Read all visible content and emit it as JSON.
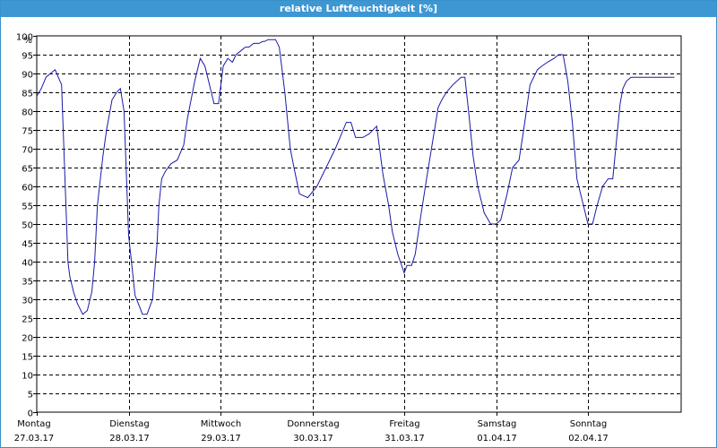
{
  "window": {
    "title": "relative Luftfeuchtigkeit [%]"
  },
  "chart_data": {
    "type": "line",
    "title": "relative Luftfeuchtigkeit [%]",
    "ylabel": "%",
    "xlabel": "",
    "ylim": [
      0,
      100
    ],
    "ytick_step": 5,
    "grid": true,
    "xlim_days": [
      0,
      7
    ],
    "day_labels": [
      {
        "day": "Montag",
        "date": "27.03.17"
      },
      {
        "day": "Dienstag",
        "date": "28.03.17"
      },
      {
        "day": "Mittwoch",
        "date": "29.03.17"
      },
      {
        "day": "Donnerstag",
        "date": "30.03.17"
      },
      {
        "day": "Freitag",
        "date": "31.03.17"
      },
      {
        "day": "Samstag",
        "date": "01.04.17"
      },
      {
        "day": "Sonntag",
        "date": "02.04.17"
      }
    ],
    "line_color": "#1a1aa8",
    "series": [
      {
        "x_days": [
          0,
          0.05,
          0.1,
          0.15,
          0.2,
          0.27,
          0.31,
          0.34,
          0.36,
          0.38,
          0.4,
          0.44,
          0.5,
          0.55,
          0.6,
          0.63,
          0.66,
          0.72,
          0.76,
          0.82,
          0.87,
          0.91,
          0.95,
          1.0,
          1.07,
          1.12,
          1.15,
          1.2,
          1.26,
          1.31,
          1.33,
          1.36,
          1.4,
          1.46,
          1.53,
          1.6,
          1.64,
          1.72,
          1.78,
          1.83,
          1.87,
          1.93,
          1.98,
          2.03,
          2.08,
          2.13,
          2.17,
          2.22,
          2.27,
          2.31,
          2.36,
          2.42,
          2.46,
          2.48,
          2.52,
          2.55,
          2.6,
          2.64,
          2.66,
          2.7,
          2.76,
          2.8,
          2.86,
          2.95,
          3.05,
          3.15,
          3.25,
          3.37,
          3.42,
          3.47,
          3.5,
          3.55,
          3.62,
          3.7,
          3.77,
          3.83,
          3.87,
          3.93,
          4.0,
          4.03,
          4.08,
          4.12,
          4.18,
          4.25,
          4.33,
          4.37,
          4.41,
          4.46,
          4.53,
          4.62,
          4.66,
          4.7,
          4.75,
          4.8,
          4.87,
          4.94,
          5.0,
          5.05,
          5.12,
          5.18,
          5.25,
          5.3,
          5.37,
          5.45,
          5.5,
          5.56,
          5.63,
          5.68,
          5.73,
          5.78,
          5.83,
          5.88,
          5.95,
          6.0,
          6.05,
          6.1,
          6.16,
          6.22,
          6.27,
          6.31,
          6.35,
          6.38,
          6.42,
          6.47,
          6.52,
          6.56,
          6.62,
          6.67,
          6.72,
          6.77,
          6.82,
          6.88,
          6.94
        ],
        "values": [
          84,
          86,
          89,
          90,
          91,
          87,
          60,
          40,
          36,
          34,
          32,
          29,
          26,
          27,
          32,
          40,
          55,
          68,
          75,
          83,
          85,
          86,
          80,
          47,
          31,
          28,
          26,
          26,
          30,
          45,
          55,
          62,
          64,
          66,
          67,
          71,
          78,
          88,
          94,
          92,
          88,
          82,
          82,
          92,
          94,
          93,
          95,
          96,
          97,
          97,
          98,
          98,
          98.5,
          98.5,
          99,
          99,
          99,
          97,
          93,
          85,
          70,
          65,
          58,
          57,
          60,
          65,
          70,
          77,
          77,
          73,
          73,
          73,
          74,
          76,
          63,
          55,
          48,
          42,
          37,
          39,
          39,
          42,
          52,
          63,
          75,
          81,
          83,
          85,
          87,
          89,
          89,
          80,
          68,
          60,
          53,
          50,
          50,
          51,
          58,
          65,
          67,
          75,
          87,
          91,
          92,
          93,
          94,
          95,
          95,
          88,
          77,
          62,
          55,
          50,
          50,
          55,
          60,
          62,
          62,
          72,
          82,
          86,
          88,
          89,
          89,
          89,
          89,
          89,
          89,
          89,
          89,
          89,
          89
        ]
      }
    ]
  }
}
